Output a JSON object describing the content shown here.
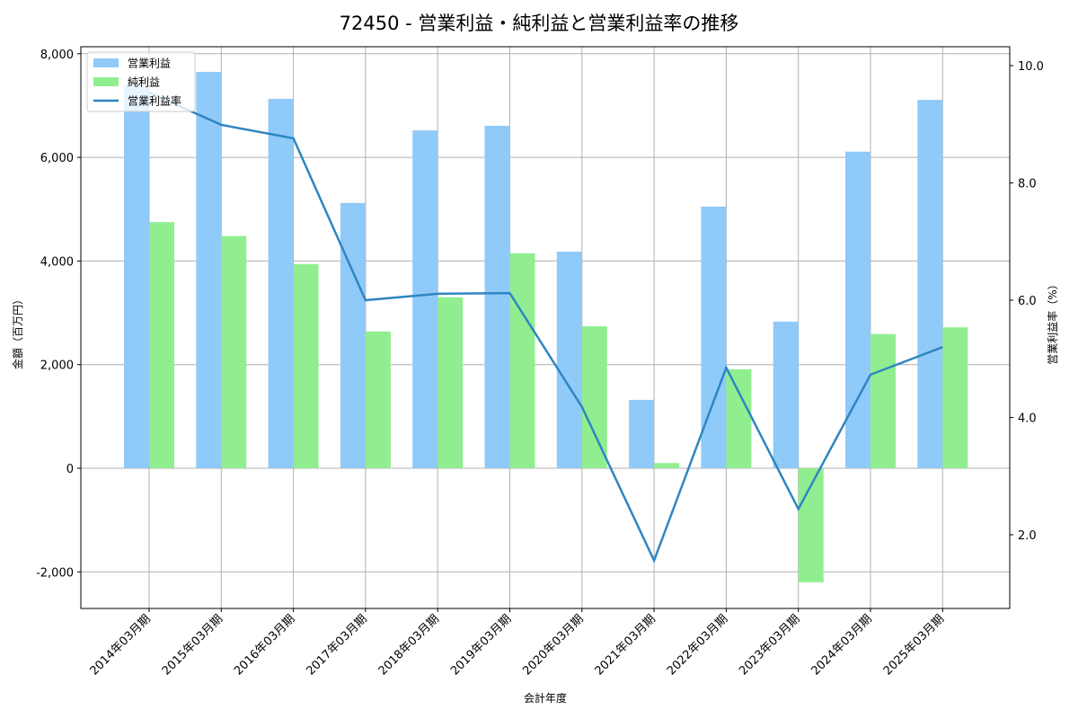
{
  "title": "72450 - 営業利益・純利益と営業利益率の推移",
  "chart_data": {
    "type": "bar",
    "title": "72450 - 営業利益・純利益と営業利益率の推移",
    "xlabel": "会計年度",
    "ylabel": "金額（百万円）",
    "y2label": "営業利益率（%）",
    "categories": [
      "2014年03月期",
      "2015年03月期",
      "2016年03月期",
      "2017年03月期",
      "2018年03月期",
      "2019年03月期",
      "2020年03月期",
      "2021年03月期",
      "2022年03月期",
      "2023年03月期",
      "2024年03月期",
      "2025年03月期"
    ],
    "series": [
      {
        "name": "営業利益",
        "type": "bar",
        "axis": "left",
        "color": "#90CAF9",
        "values": [
          7400,
          7650,
          7130,
          5120,
          6520,
          6610,
          4180,
          1320,
          5050,
          2830,
          6110,
          7110
        ]
      },
      {
        "name": "純利益",
        "type": "bar",
        "axis": "left",
        "color": "#90EE90",
        "values": [
          4750,
          4480,
          3940,
          2640,
          3300,
          4150,
          2740,
          100,
          1910,
          -2200,
          2590,
          2720
        ]
      },
      {
        "name": "営業利益率",
        "type": "line",
        "axis": "right",
        "color": "#2E86C1",
        "values": [
          9.54,
          8.99,
          8.76,
          6.0,
          6.11,
          6.12,
          4.18,
          1.56,
          4.85,
          2.44,
          4.73,
          5.2
        ]
      }
    ],
    "ylim": [
      -2700,
      8150
    ],
    "y2lim": [
      0.8,
      10.2
    ],
    "yticks": [
      -2000,
      0,
      2000,
      4000,
      6000,
      8000
    ],
    "ytick_labels": [
      "-2,000",
      "0",
      "2,000",
      "4,000",
      "6,000",
      "8,000"
    ],
    "y2ticks": [
      2.0,
      4.0,
      6.0,
      8.0,
      10.0
    ],
    "y2tick_labels": [
      "2.0",
      "4.0",
      "6.0",
      "8.0",
      "10.0"
    ],
    "grid": true,
    "legend_position": "upper left",
    "legend": [
      "営業利益",
      "純利益",
      "営業利益率"
    ]
  }
}
